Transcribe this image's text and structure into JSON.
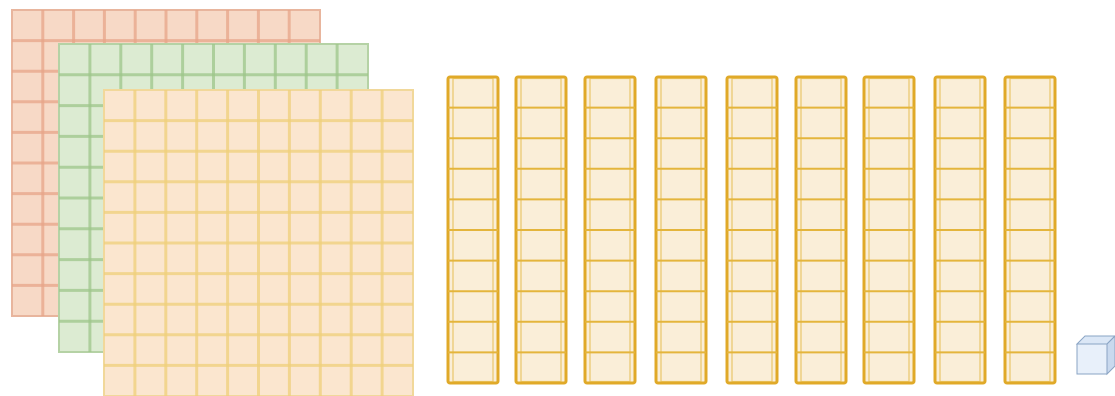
{
  "figure": {
    "flats": [
      {
        "name": "flat-red",
        "grid": 10,
        "fill": "#f7d9c6",
        "line": "#e7a488",
        "border": "#e8b59d"
      },
      {
        "name": "flat-green",
        "grid": 10,
        "fill": "#dcebd2",
        "line": "#9ec58a",
        "border": "#b5d2a5"
      },
      {
        "name": "flat-yellow",
        "grid": 10,
        "fill": "#fbe6cf",
        "line": "#efcf7a",
        "border": "#f1d89a"
      }
    ],
    "rods": {
      "count": 9,
      "units_per_rod": 10,
      "fill": "#faeed8",
      "border": "#e0a928",
      "divider": "#e4b53c"
    },
    "unit_cube": {
      "count": 1,
      "front": "#e8f0fa",
      "top": "#dbe7f6",
      "side": "#c9d9ee",
      "edge": "#8aa4c4"
    }
  }
}
